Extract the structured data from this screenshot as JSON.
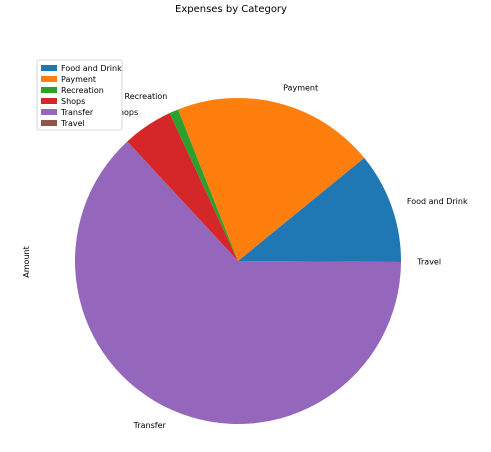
{
  "chart_data": {
    "type": "pie",
    "title": "Expenses by Category",
    "ylabel": "Amount",
    "legend_position": "top-left",
    "categories": [
      "Food and Drink",
      "Payment",
      "Recreation",
      "Shops",
      "Transfer",
      "Travel"
    ],
    "values": [
      10.9,
      20.1,
      0.9,
      5.0,
      63.0,
      0.1
    ],
    "value_unit": "percent of total",
    "colors": [
      "#1f77b4",
      "#ff7f0e",
      "#2ca02c",
      "#d62728",
      "#9467bd",
      "#8c564b"
    ],
    "start_angle_deg": 0,
    "direction": "counterclockwise"
  }
}
